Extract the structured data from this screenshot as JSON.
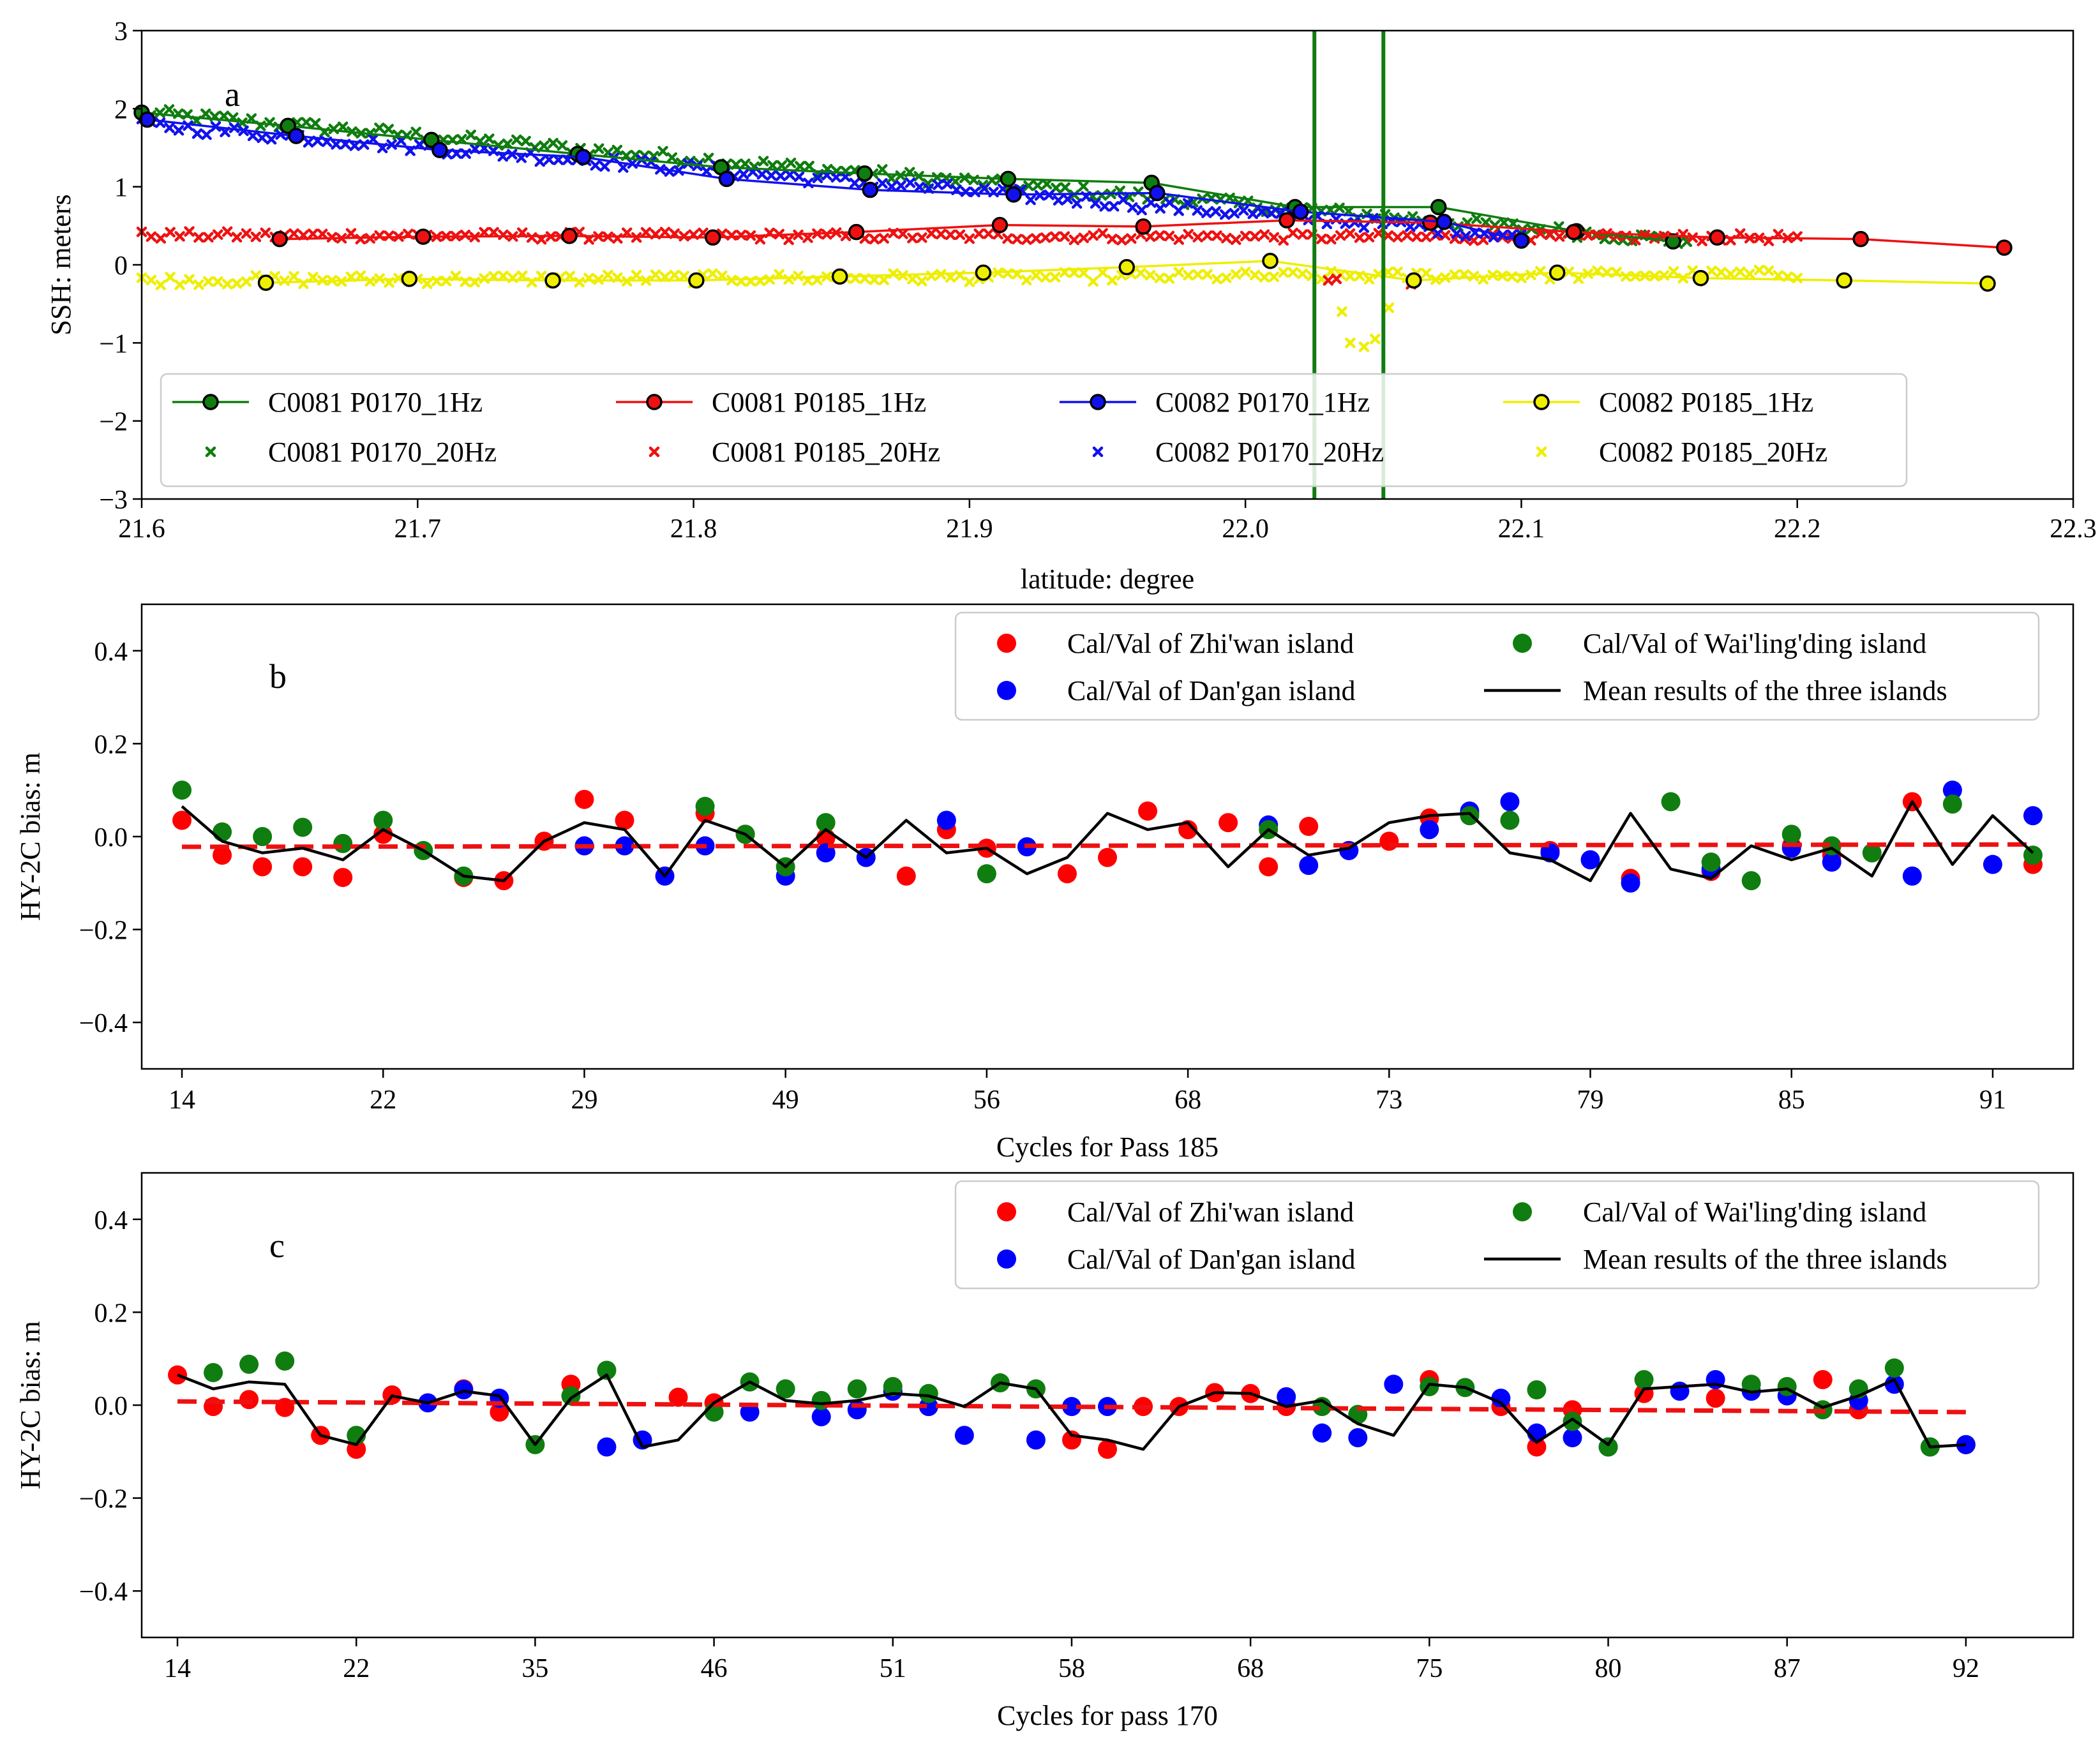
{
  "chart_data": [
    {
      "panel": "a",
      "type": "scatter",
      "xlabel": "latitude: degree",
      "ylabel": "SSH: meters",
      "xlim": [
        21.6,
        22.3
      ],
      "ylim": [
        -3,
        3
      ],
      "xticks": [
        "21.6",
        "21.7",
        "21.8",
        "21.9",
        "22.0",
        "22.1",
        "22.2",
        "22.3"
      ],
      "yticks": [
        "3",
        "2",
        "1",
        "0",
        "−1",
        "−2",
        "−3"
      ],
      "vlines": [
        22.025,
        22.05
      ],
      "vline_color": "#107c10",
      "legend_position": "lower-center",
      "series": [
        {
          "name": "C0081 P0170_1Hz",
          "kind": "1Hz",
          "color": "#0f7d0f",
          "x": [
            21.6,
            21.653,
            21.705,
            21.758,
            21.81,
            21.862,
            21.914,
            21.966,
            22.018,
            22.07,
            22.12,
            22.155
          ],
          "y": [
            1.95,
            1.78,
            1.6,
            1.42,
            1.25,
            1.17,
            1.1,
            1.05,
            0.74,
            0.74,
            0.43,
            0.3
          ]
        },
        {
          "name": "C0081 P0170_20Hz",
          "kind": "20Hz",
          "color": "#0f7d0f",
          "range": [
            21.6,
            22.16
          ],
          "y_start": 1.95,
          "y_end": 0.3,
          "noise": 0.07,
          "n": 170
        },
        {
          "name": "C0081 P0185_1Hz",
          "kind": "1Hz",
          "color": "#ee1111",
          "x": [
            21.65,
            21.702,
            21.755,
            21.807,
            21.859,
            21.911,
            21.963,
            22.015,
            22.067,
            22.119,
            22.171,
            22.223,
            22.275
          ],
          "y": [
            0.33,
            0.36,
            0.37,
            0.35,
            0.42,
            0.51,
            0.49,
            0.57,
            0.54,
            0.42,
            0.35,
            0.33,
            0.22
          ]
        },
        {
          "name": "C0081 P0185_20Hz",
          "kind": "20Hz",
          "color": "#ee1111",
          "range": [
            21.6,
            22.2
          ],
          "y_start": 0.38,
          "y_end": 0.35,
          "noise": 0.05,
          "n": 175
        },
        {
          "name": "C0082 P0170_1Hz",
          "kind": "1Hz",
          "color": "#1111ee",
          "x": [
            21.602,
            21.656,
            21.708,
            21.76,
            21.812,
            21.864,
            21.916,
            21.968,
            22.02,
            22.072,
            22.1
          ],
          "y": [
            1.86,
            1.65,
            1.47,
            1.38,
            1.1,
            0.96,
            0.9,
            0.92,
            0.68,
            0.55,
            0.31
          ]
        },
        {
          "name": "C0082 P0170_20Hz",
          "kind": "20Hz",
          "color": "#1111ee",
          "range": [
            21.6,
            22.1
          ],
          "y_start": 1.8,
          "y_end": 0.38,
          "noise": 0.07,
          "n": 150
        },
        {
          "name": "C0082 P0185_1Hz",
          "kind": "1Hz",
          "color": "#eeee00",
          "x": [
            21.645,
            21.697,
            21.749,
            21.801,
            21.853,
            21.905,
            21.957,
            22.009,
            22.061,
            22.113,
            22.165,
            22.217,
            22.269
          ],
          "y": [
            -0.23,
            -0.18,
            -0.2,
            -0.2,
            -0.15,
            -0.1,
            -0.03,
            0.05,
            -0.2,
            -0.1,
            -0.17,
            -0.2,
            -0.24
          ]
        },
        {
          "name": "C0082 P0185_20Hz",
          "kind": "20Hz",
          "color": "#eeee00",
          "range": [
            21.6,
            22.2
          ],
          "y_start": -0.2,
          "y_end": -0.12,
          "noise": 0.06,
          "n": 175
        }
      ]
    },
    {
      "panel": "b",
      "type": "scatter",
      "xlabel": "Cycles for Pass 185",
      "ylabel": "HY-2C bias: m",
      "xlim": [
        0,
        48
      ],
      "ylim": [
        -0.5,
        0.5
      ],
      "xticks": [
        {
          "x": 1,
          "label": "14"
        },
        {
          "x": 6,
          "label": "22"
        },
        {
          "x": 11,
          "label": "29"
        },
        {
          "x": 16,
          "label": "49"
        },
        {
          "x": 21,
          "label": "56"
        },
        {
          "x": 26,
          "label": "68"
        },
        {
          "x": 31,
          "label": "73"
        },
        {
          "x": 36,
          "label": "79"
        },
        {
          "x": 41,
          "label": "85"
        },
        {
          "x": 46,
          "label": "91"
        }
      ],
      "yticks": [
        "0.4",
        "0.2",
        "0.0",
        "−0.2",
        "−0.4"
      ],
      "legend_position": "upper-right",
      "trend": {
        "x": [
          1,
          47
        ],
        "y": [
          -0.022,
          -0.017
        ],
        "color": "#ee1111"
      },
      "series": [
        {
          "name": "Cal/Val of Zhi'wan island",
          "kind": "dot",
          "color": "#ff0000",
          "x": [
            1,
            2,
            3,
            4,
            5,
            6,
            8,
            9,
            10,
            11,
            12,
            14,
            15,
            17,
            19,
            20,
            21,
            23,
            24,
            25,
            26,
            27,
            28,
            29,
            30,
            31,
            32,
            33,
            35,
            37,
            39,
            41,
            42,
            44,
            47
          ],
          "y": [
            0.035,
            -0.04,
            -0.065,
            -0.065,
            -0.088,
            0.005,
            -0.088,
            -0.095,
            -0.01,
            0.08,
            0.035,
            0.05,
            0.005,
            -0.003,
            -0.085,
            0.015,
            -0.025,
            -0.08,
            -0.045,
            0.055,
            0.015,
            0.03,
            -0.065,
            0.022,
            -0.03,
            -0.01,
            0.04,
            0.05,
            -0.03,
            -0.09,
            -0.075,
            -0.02,
            -0.04,
            0.075,
            -0.06
          ]
        },
        {
          "name": "Cal/Val of Dan'gan island",
          "kind": "dot",
          "color": "#0000ff",
          "x": [
            11,
            12,
            13,
            14,
            16,
            17,
            18,
            20,
            22,
            28,
            29,
            30,
            32,
            33,
            34,
            35,
            36,
            37,
            39,
            41,
            42,
            44,
            45,
            46,
            47
          ],
          "y": [
            -0.02,
            -0.02,
            -0.085,
            -0.02,
            -0.085,
            -0.035,
            -0.045,
            0.035,
            -0.022,
            0.025,
            -0.062,
            -0.03,
            0.015,
            0.055,
            0.075,
            -0.035,
            -0.05,
            -0.1,
            -0.07,
            -0.025,
            -0.055,
            -0.085,
            0.1,
            -0.06,
            0.045
          ]
        },
        {
          "name": "Cal/Val of Wai'ling'ding island",
          "kind": "dot",
          "color": "#0f7d0f",
          "x": [
            1,
            2,
            3,
            4,
            5,
            6,
            7,
            8,
            14,
            15,
            16,
            17,
            21,
            28,
            33,
            34,
            38,
            39,
            40,
            41,
            42,
            43,
            45,
            47
          ],
          "y": [
            0.1,
            0.01,
            0.0,
            0.02,
            -0.015,
            0.035,
            -0.03,
            -0.085,
            0.065,
            0.005,
            -0.065,
            0.03,
            -0.08,
            0.015,
            0.045,
            0.035,
            0.075,
            -0.055,
            -0.095,
            0.005,
            -0.02,
            -0.035,
            0.07,
            -0.04
          ]
        },
        {
          "name": "Mean results of the three islands",
          "kind": "line",
          "color": "#000000",
          "x": [
            1,
            2,
            3,
            4,
            5,
            6,
            7,
            8,
            9,
            10,
            11,
            12,
            13,
            14,
            15,
            16,
            17,
            18,
            19,
            20,
            21,
            22,
            23,
            24,
            25,
            26,
            27,
            28,
            29,
            30,
            31,
            32,
            33,
            34,
            35,
            36,
            37,
            38,
            39,
            40,
            41,
            42,
            43,
            44,
            45,
            46,
            47
          ],
          "y": [
            0.065,
            -0.01,
            -0.035,
            -0.025,
            -0.05,
            0.015,
            -0.03,
            -0.085,
            -0.095,
            -0.01,
            0.03,
            0.015,
            -0.085,
            0.035,
            0.005,
            -0.065,
            0.015,
            -0.045,
            0.035,
            -0.035,
            -0.025,
            -0.08,
            -0.045,
            0.05,
            0.015,
            0.03,
            -0.065,
            0.015,
            -0.04,
            -0.025,
            0.03,
            0.045,
            0.05,
            -0.035,
            -0.05,
            -0.095,
            0.05,
            -0.07,
            -0.09,
            -0.02,
            -0.05,
            -0.025,
            -0.085,
            0.075,
            -0.06,
            0.045,
            -0.035
          ]
        }
      ]
    },
    {
      "panel": "c",
      "type": "scatter",
      "xlabel": "Cycles for pass 170",
      "ylabel": "HY-2C bias: m",
      "xlim": [
        0,
        54
      ],
      "ylim": [
        -0.5,
        0.5
      ],
      "xticks": [
        {
          "x": 1,
          "label": "14"
        },
        {
          "x": 6,
          "label": "22"
        },
        {
          "x": 11,
          "label": "35"
        },
        {
          "x": 16,
          "label": "46"
        },
        {
          "x": 21,
          "label": "51"
        },
        {
          "x": 26,
          "label": "58"
        },
        {
          "x": 31,
          "label": "68"
        },
        {
          "x": 36,
          "label": "75"
        },
        {
          "x": 41,
          "label": "80"
        },
        {
          "x": 46,
          "label": "87"
        },
        {
          "x": 51,
          "label": "92"
        }
      ],
      "yticks": [
        "0.4",
        "0.2",
        "0.0",
        "−0.2",
        "−0.4"
      ],
      "legend_position": "upper-right",
      "trend": {
        "x": [
          1,
          51
        ],
        "y": [
          0.008,
          -0.015
        ],
        "color": "#ee1111"
      },
      "series": [
        {
          "name": "Cal/Val of Zhi'wan island",
          "kind": "dot",
          "color": "#ff0000",
          "x": [
            1,
            2,
            3,
            4,
            5,
            6,
            7,
            9,
            10,
            12,
            15,
            16,
            21,
            22,
            26,
            27,
            28,
            29,
            30,
            31,
            32,
            36,
            38,
            39,
            40,
            42,
            44,
            47,
            48,
            51
          ],
          "y": [
            0.065,
            -0.003,
            0.012,
            -0.005,
            -0.065,
            -0.095,
            0.022,
            0.035,
            -0.015,
            0.045,
            0.017,
            0.005,
            0.03,
            -0.003,
            -0.075,
            -0.095,
            -0.003,
            -0.003,
            0.027,
            0.025,
            -0.003,
            0.055,
            -0.003,
            -0.09,
            -0.01,
            0.025,
            0.015,
            0.055,
            -0.01,
            -0.085
          ]
        },
        {
          "name": "Cal/Val of Dan'gan island",
          "kind": "dot",
          "color": "#0000ff",
          "x": [
            8,
            9,
            10,
            13,
            14,
            17,
            19,
            20,
            21,
            22,
            23,
            25,
            26,
            27,
            32,
            33,
            34,
            35,
            36,
            38,
            39,
            40,
            41,
            43,
            44,
            45,
            46,
            48,
            49,
            50,
            51
          ],
          "y": [
            0.005,
            0.033,
            0.015,
            -0.09,
            -0.075,
            -0.015,
            -0.025,
            -0.01,
            0.03,
            -0.003,
            -0.065,
            -0.075,
            -0.003,
            -0.003,
            0.018,
            -0.06,
            -0.07,
            0.045,
            0.04,
            0.015,
            -0.06,
            -0.07,
            -0.09,
            0.03,
            0.055,
            0.03,
            0.02,
            0.01,
            0.045,
            -0.09,
            -0.085
          ]
        },
        {
          "name": "Cal/Val of Wai'ling'ding island",
          "kind": "dot",
          "color": "#0f7d0f",
          "x": [
            2,
            3,
            4,
            6,
            11,
            12,
            13,
            16,
            17,
            18,
            19,
            20,
            21,
            22,
            24,
            25,
            33,
            34,
            36,
            37,
            39,
            40,
            41,
            42,
            45,
            46,
            47,
            48,
            49,
            50
          ],
          "y": [
            0.07,
            0.088,
            0.095,
            -0.065,
            -0.085,
            0.02,
            0.075,
            -0.015,
            0.05,
            0.035,
            0.01,
            0.035,
            0.04,
            0.025,
            0.048,
            0.035,
            -0.003,
            -0.02,
            0.04,
            0.038,
            0.033,
            -0.035,
            -0.09,
            0.055,
            0.045,
            0.04,
            -0.01,
            0.035,
            0.08,
            -0.09
          ]
        },
        {
          "name": "Mean results of the three islands",
          "kind": "line",
          "color": "#000000",
          "x": [
            1,
            2,
            3,
            4,
            5,
            6,
            7,
            8,
            9,
            10,
            11,
            12,
            13,
            14,
            15,
            16,
            17,
            18,
            19,
            20,
            21,
            22,
            23,
            24,
            25,
            26,
            27,
            28,
            29,
            30,
            31,
            32,
            33,
            34,
            35,
            36,
            37,
            38,
            39,
            40,
            41,
            42,
            43,
            44,
            45,
            46,
            47,
            48,
            49,
            50,
            51
          ],
          "y": [
            0.065,
            0.035,
            0.05,
            0.045,
            -0.065,
            -0.085,
            0.02,
            0.005,
            0.03,
            0.02,
            -0.085,
            0.015,
            0.065,
            -0.09,
            -0.075,
            0.005,
            0.05,
            0.01,
            0.003,
            0.01,
            0.025,
            0.02,
            -0.003,
            0.048,
            0.035,
            -0.065,
            -0.075,
            -0.095,
            -0.003,
            0.027,
            0.025,
            -0.003,
            0.01,
            -0.04,
            -0.065,
            0.045,
            0.038,
            0.005,
            -0.08,
            -0.03,
            -0.085,
            0.035,
            0.04,
            0.045,
            0.028,
            0.035,
            -0.005,
            0.02,
            0.055,
            -0.09,
            -0.085
          ]
        }
      ]
    }
  ]
}
